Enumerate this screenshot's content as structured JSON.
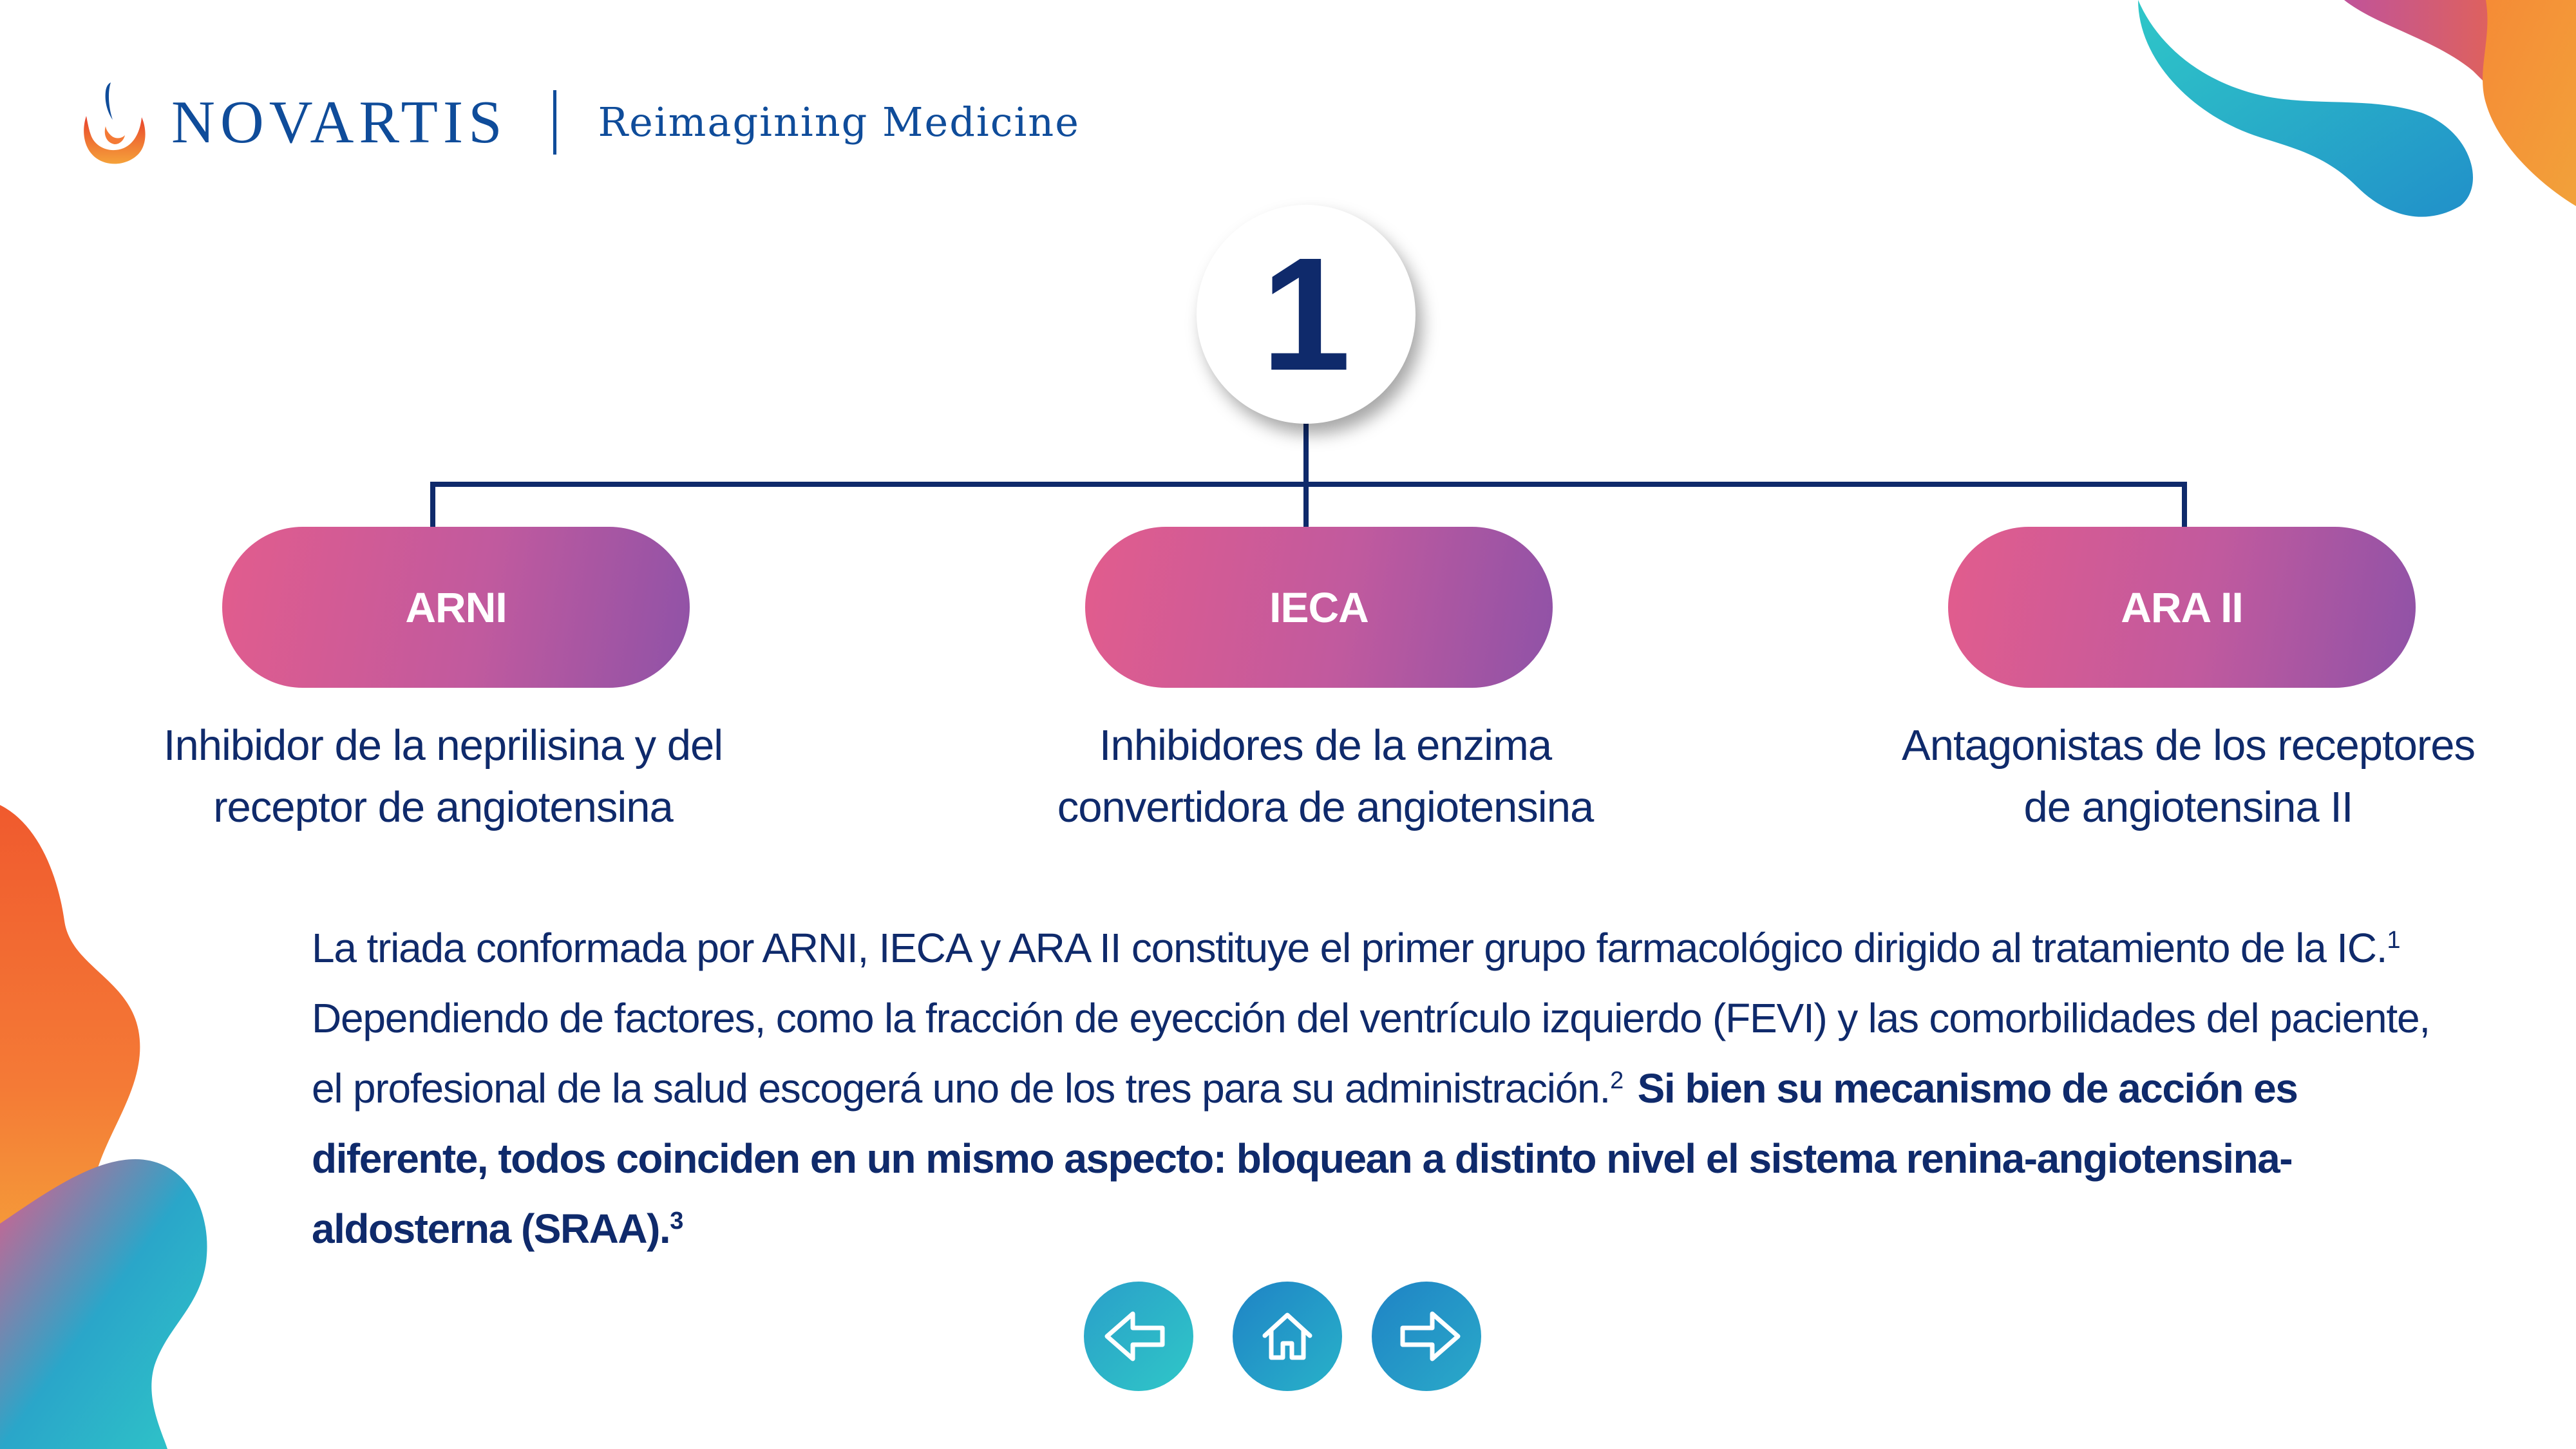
{
  "header": {
    "brand": "NOVARTIS",
    "tagline": "Reimagining Medicine"
  },
  "diagram": {
    "number": "1",
    "items": [
      {
        "label": "ARNI",
        "description_line1": "Inhibidor de la neprilisina y del",
        "description_line2": "receptor de angiotensina"
      },
      {
        "label": "IECA",
        "description_line1": "Inhibidores de la enzima",
        "description_line2": "convertidora de angiotensina"
      },
      {
        "label": "ARA II",
        "description_line1": "Antagonistas de los receptores",
        "description_line2": "de angiotensina II"
      }
    ]
  },
  "body": {
    "part1": "La triada conformada por ARNI, IECA y ARA II constituye el primer grupo farmacológico dirigido al tratamiento de la IC.",
    "ref1": "1",
    "part2": " Dependiendo de factores, como la fracción de eyección del ventrículo izquierdo (FEVI) y las comorbilidades del paciente, el profesional de la salud escogerá uno de los tres para su administración.",
    "ref2": "2",
    "bold": "Si bien su mecanismo de acción es diferente, todos coinciden en un mismo aspecto: bloquean a distinto nivel el sistema renina-angiotensina-aldosterna (SRAA).",
    "ref3": "3"
  },
  "nav": {
    "prev_icon": "arrow-left-icon",
    "home_icon": "home-icon",
    "next_icon": "arrow-right-icon"
  },
  "colors": {
    "navy": "#0f2a6b",
    "brand_blue": "#0f4c9a",
    "pill_start": "#e25c8d",
    "pill_end": "#8f52a7",
    "teal": "#2fc7c8",
    "orange": "#f26b3a"
  }
}
